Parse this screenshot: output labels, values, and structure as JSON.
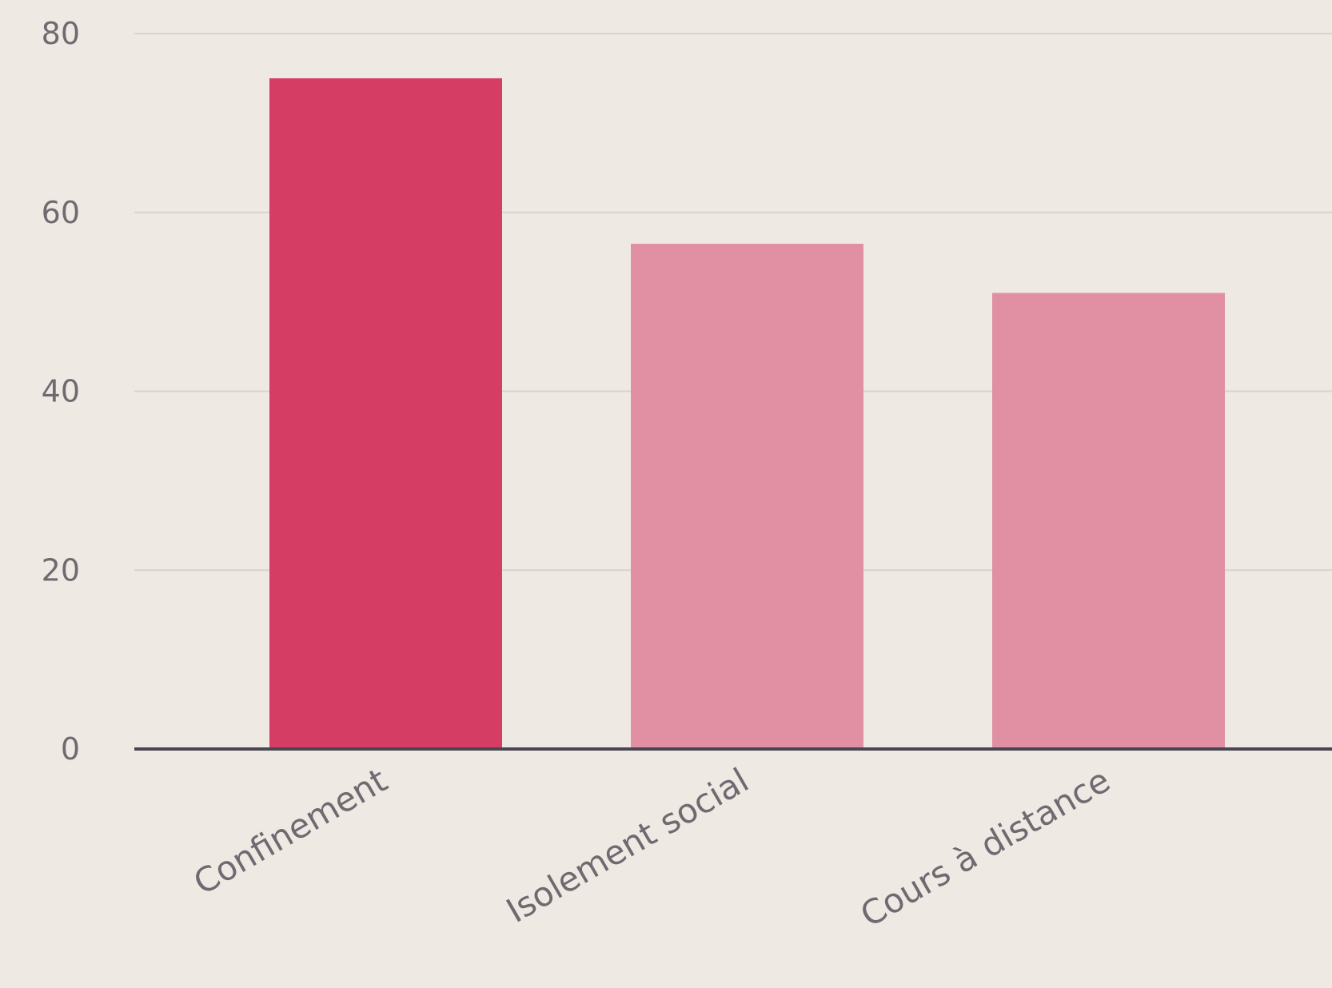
{
  "chart_data": {
    "type": "bar",
    "categories": [
      "Confinement",
      "Isolement social",
      "Cours à distance"
    ],
    "values": [
      75,
      56.5,
      51
    ],
    "ylim": [
      0,
      80
    ],
    "yticks": [
      0,
      20,
      40,
      60,
      80
    ],
    "grid": true,
    "title": "",
    "xlabel": "",
    "ylabel": "",
    "colors": {
      "highlight": "#d63d64",
      "default": "#e190a3",
      "gridline": "#d9d3ce",
      "baseline": "#4a4650",
      "background": "#efe9e4",
      "text": "#6e6a70"
    },
    "highlight_index": 0
  }
}
